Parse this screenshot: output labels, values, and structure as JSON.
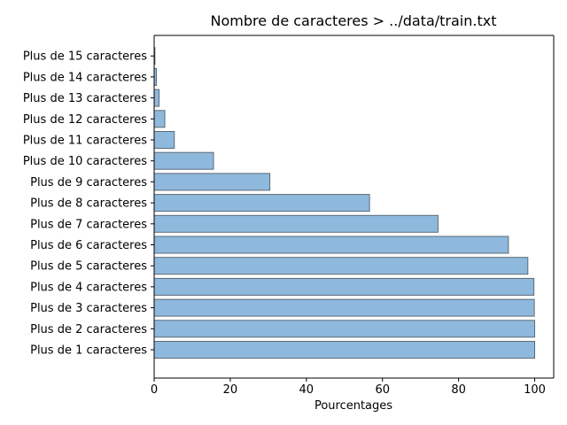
{
  "chart_data": {
    "type": "bar",
    "orientation": "horizontal",
    "title": "Nombre de caracteres > ../data/train.txt",
    "xlabel": "Pourcentages",
    "ylabel": "",
    "xlim": [
      0,
      105
    ],
    "xticks": [
      0,
      20,
      40,
      60,
      80,
      100
    ],
    "grid": false,
    "categories": [
      "Plus de 1 caracteres",
      "Plus de 2 caracteres",
      "Plus de 3 caracteres",
      "Plus de 4 caracteres",
      "Plus de 5 caracteres",
      "Plus de 6 caracteres",
      "Plus de 7 caracteres",
      "Plus de 8 caracteres",
      "Plus de 9 caracteres",
      "Plus de 10 caracteres",
      "Plus de 11 caracteres",
      "Plus de 12 caracteres",
      "Plus de 13 caracteres",
      "Plus de 14 caracteres",
      "Plus de 15 caracteres"
    ],
    "values": [
      100,
      100,
      99.9,
      99.8,
      98.2,
      93.1,
      74.6,
      56.6,
      30.4,
      15.6,
      5.3,
      2.8,
      1.3,
      0.6,
      0.2
    ],
    "colors": {
      "bar_fill": "#8fb9dc",
      "bar_edge": "#5a6a78",
      "axis": "#000000"
    }
  }
}
